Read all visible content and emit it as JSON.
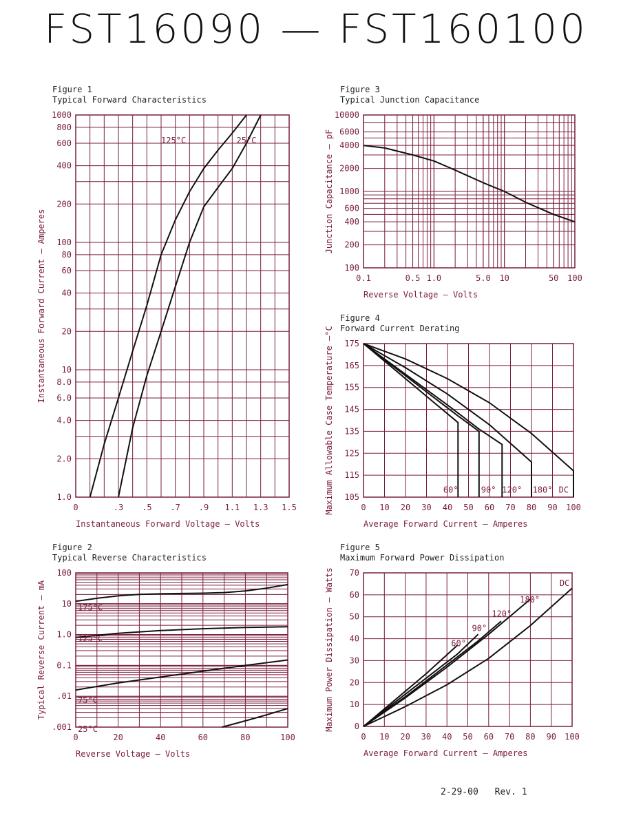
{
  "page": {
    "title": "FST16090 — FST160100"
  },
  "footer": {
    "date": "2-29-00",
    "revision": "Rev. 1"
  },
  "colors": {
    "grid": "#7a1e3a",
    "text": "#7a1e3a",
    "curve": "#111111"
  },
  "chart_data": [
    {
      "id": "fig1",
      "type": "line",
      "figure_label": "Figure 1",
      "title": "Typical Forward Characteristics",
      "xlabel": "Instantaneous Forward Voltage — Volts",
      "ylabel": "Instantaneous Forward Current — Amperes",
      "xscale": "linear",
      "yscale": "log",
      "xlim": [
        0,
        1.5
      ],
      "ylim": [
        1,
        1000
      ],
      "xticks": [
        0,
        0.3,
        0.5,
        0.7,
        0.9,
        1.1,
        1.3,
        1.5
      ],
      "xtick_labels": [
        "0",
        ".3",
        ".5",
        ".7",
        ".9",
        "1.1",
        "1.3",
        "1.5"
      ],
      "yticks": [
        1,
        2,
        4,
        6,
        8,
        10,
        20,
        40,
        60,
        80,
        100,
        200,
        400,
        600,
        800,
        1000
      ],
      "ytick_labels": [
        "1.0",
        "2.0",
        "4.0",
        "6.0",
        "8.0",
        "10",
        "20",
        "40",
        "60",
        "80",
        "100",
        "200",
        "400",
        "600",
        "800",
        "1000"
      ],
      "grid": true,
      "series": [
        {
          "name": "125°C",
          "label_at": [
            0.6,
            600
          ],
          "x": [
            0.1,
            0.2,
            0.3,
            0.4,
            0.5,
            0.6,
            0.7,
            0.8,
            0.9,
            1.0,
            1.1,
            1.2
          ],
          "y": [
            1,
            2.6,
            6,
            14,
            32,
            80,
            150,
            250,
            380,
            530,
            720,
            1000
          ]
        },
        {
          "name": "25°C",
          "label_at": [
            1.13,
            600
          ],
          "x": [
            0.3,
            0.4,
            0.5,
            0.6,
            0.7,
            0.8,
            0.9,
            1.0,
            1.1,
            1.2,
            1.3
          ],
          "y": [
            1,
            3.5,
            9,
            20,
            45,
            100,
            190,
            270,
            380,
            600,
            1000
          ]
        }
      ]
    },
    {
      "id": "fig2",
      "type": "line",
      "figure_label": "Figure 2",
      "title": "Typical Reverse Characteristics",
      "xlabel": "Reverse Voltage — Volts",
      "ylabel": "Typical Reverse Current — mA",
      "xscale": "linear",
      "yscale": "log",
      "xlim": [
        0,
        100
      ],
      "ylim": [
        0.001,
        100
      ],
      "xticks": [
        0,
        20,
        40,
        60,
        80,
        100
      ],
      "xtick_labels": [
        "0",
        "20",
        "40",
        "60",
        "80",
        "100"
      ],
      "yticks": [
        0.001,
        0.01,
        0.1,
        1,
        10,
        100
      ],
      "ytick_labels": [
        ".001",
        ".01",
        "0.1",
        "1.0",
        "10",
        "100"
      ],
      "grid": true,
      "series": [
        {
          "name": "175°C",
          "label_at": [
            1,
            6
          ],
          "x": [
            0,
            10,
            20,
            30,
            40,
            50,
            60,
            70,
            80,
            90,
            100
          ],
          "y": [
            12,
            15,
            18,
            20,
            21,
            21.5,
            22,
            23,
            26,
            32,
            42
          ]
        },
        {
          "name": "125°C",
          "label_at": [
            1,
            0.6
          ],
          "x": [
            0,
            20,
            40,
            60,
            80,
            100
          ],
          "y": [
            0.8,
            1.1,
            1.35,
            1.55,
            1.7,
            1.8
          ]
        },
        {
          "name": "75°C",
          "label_at": [
            1,
            0.006
          ],
          "x": [
            0,
            20,
            40,
            60,
            80,
            100
          ],
          "y": [
            0.016,
            0.027,
            0.042,
            0.065,
            0.1,
            0.15
          ]
        },
        {
          "name": "25°C",
          "label_at": [
            1,
            0.0007
          ],
          "x": [
            69,
            80,
            90,
            100
          ],
          "y": [
            0.001,
            0.0016,
            0.0025,
            0.004
          ]
        }
      ]
    },
    {
      "id": "fig3",
      "type": "line",
      "figure_label": "Figure 3",
      "title": "Typical Junction Capacitance",
      "xlabel": "Reverse Voltage — Volts",
      "ylabel": "Junction Capacitance — pF",
      "xscale": "log",
      "yscale": "log",
      "xlim": [
        0.1,
        100
      ],
      "ylim": [
        100,
        10000
      ],
      "xticks": [
        0.1,
        0.5,
        1,
        5,
        10,
        50,
        100
      ],
      "xtick_labels": [
        "0.1",
        "0.5",
        "1.0",
        "5.0",
        "10",
        "50",
        "100"
      ],
      "yticks": [
        100,
        200,
        400,
        600,
        1000,
        2000,
        4000,
        6000,
        10000
      ],
      "ytick_labels": [
        "100",
        "200",
        "400",
        "600",
        "1000",
        "2000",
        "4000",
        "6000",
        "10000"
      ],
      "grid": true,
      "series": [
        {
          "name": "",
          "x": [
            0.1,
            0.2,
            0.5,
            1,
            2,
            5,
            10,
            20,
            50,
            100
          ],
          "y": [
            4000,
            3700,
            3000,
            2500,
            1900,
            1300,
            1000,
            720,
            500,
            400
          ]
        }
      ]
    },
    {
      "id": "fig4",
      "type": "line",
      "figure_label": "Figure 4",
      "title": "Forward Current Derating",
      "xlabel": "Average Forward Current — Amperes",
      "ylabel": "Maximum Allowable Case Temperature —°C",
      "xscale": "linear",
      "yscale": "linear",
      "xlim": [
        0,
        100
      ],
      "ylim": [
        105,
        175
      ],
      "xticks": [
        0,
        10,
        20,
        30,
        40,
        50,
        60,
        70,
        80,
        90,
        100
      ],
      "xtick_labels": [
        "0",
        "10",
        "20",
        "30",
        "40",
        "50",
        "60",
        "70",
        "80",
        "90",
        "100"
      ],
      "yticks": [
        105,
        115,
        125,
        135,
        145,
        155,
        165,
        175
      ],
      "ytick_labels": [
        "105",
        "115",
        "125",
        "135",
        "145",
        "155",
        "165",
        "175"
      ],
      "grid": true,
      "series": [
        {
          "name": "60°",
          "label_at": [
            38,
            107
          ],
          "x": [
            0,
            15,
            30,
            45,
            45
          ],
          "y": [
            175,
            163,
            151,
            139,
            105
          ]
        },
        {
          "name": "90°",
          "label_at": [
            56,
            107
          ],
          "x": [
            0,
            15,
            30,
            45,
            55,
            55
          ],
          "y": [
            175,
            164,
            153,
            142,
            135,
            105
          ]
        },
        {
          "name": "120°",
          "label_at": [
            66,
            107
          ],
          "x": [
            0,
            20,
            40,
            55,
            66,
            66
          ],
          "y": [
            175,
            161,
            147,
            136,
            129,
            105
          ]
        },
        {
          "name": "180°",
          "label_at": [
            80.5,
            107
          ],
          "x": [
            0,
            20,
            40,
            60,
            80,
            80
          ],
          "y": [
            175,
            164,
            152,
            138,
            121,
            105
          ]
        },
        {
          "name": "DC",
          "label_at": [
            93,
            107
          ],
          "x": [
            0,
            20,
            40,
            60,
            80,
            100,
            100
          ],
          "y": [
            175,
            168,
            159,
            148,
            134,
            117,
            105
          ]
        }
      ]
    },
    {
      "id": "fig5",
      "type": "line",
      "figure_label": "Figure 5",
      "title": "Maximum Forward Power Dissipation",
      "xlabel": "Average Forward Current — Amperes",
      "ylabel": "Maximum Power Dissipation — Watts",
      "xscale": "linear",
      "yscale": "linear",
      "xlim": [
        0,
        100
      ],
      "ylim": [
        0,
        70
      ],
      "xticks": [
        0,
        10,
        20,
        30,
        40,
        50,
        60,
        70,
        80,
        90,
        100
      ],
      "xtick_labels": [
        "0",
        "10",
        "20",
        "30",
        "40",
        "50",
        "60",
        "70",
        "80",
        "90",
        "100"
      ],
      "yticks": [
        0,
        10,
        20,
        30,
        40,
        50,
        60,
        70
      ],
      "ytick_labels": [
        "0",
        "10",
        "20",
        "30",
        "40",
        "50",
        "60",
        "70"
      ],
      "grid": true,
      "series": [
        {
          "name": "60°",
          "label_at": [
            42,
            36.5
          ],
          "x": [
            0,
            15,
            30,
            45
          ],
          "y": [
            0,
            12,
            24,
            37
          ]
        },
        {
          "name": "90°",
          "label_at": [
            52,
            43.5
          ],
          "x": [
            0,
            15,
            30,
            45,
            55
          ],
          "y": [
            0,
            11,
            22,
            33,
            42
          ]
        },
        {
          "name": "120°",
          "label_at": [
            61.5,
            50
          ],
          "x": [
            0,
            20,
            40,
            55,
            66
          ],
          "y": [
            0,
            13.5,
            28,
            39,
            48
          ]
        },
        {
          "name": "180°",
          "label_at": [
            75,
            56.5
          ],
          "x": [
            0,
            20,
            40,
            60,
            80
          ],
          "y": [
            0,
            13,
            27,
            42,
            58
          ]
        },
        {
          "name": "DC",
          "label_at": [
            94,
            64
          ],
          "x": [
            0,
            20,
            40,
            60,
            80,
            100
          ],
          "y": [
            0,
            9,
            19,
            31,
            46,
            63
          ]
        }
      ]
    }
  ]
}
